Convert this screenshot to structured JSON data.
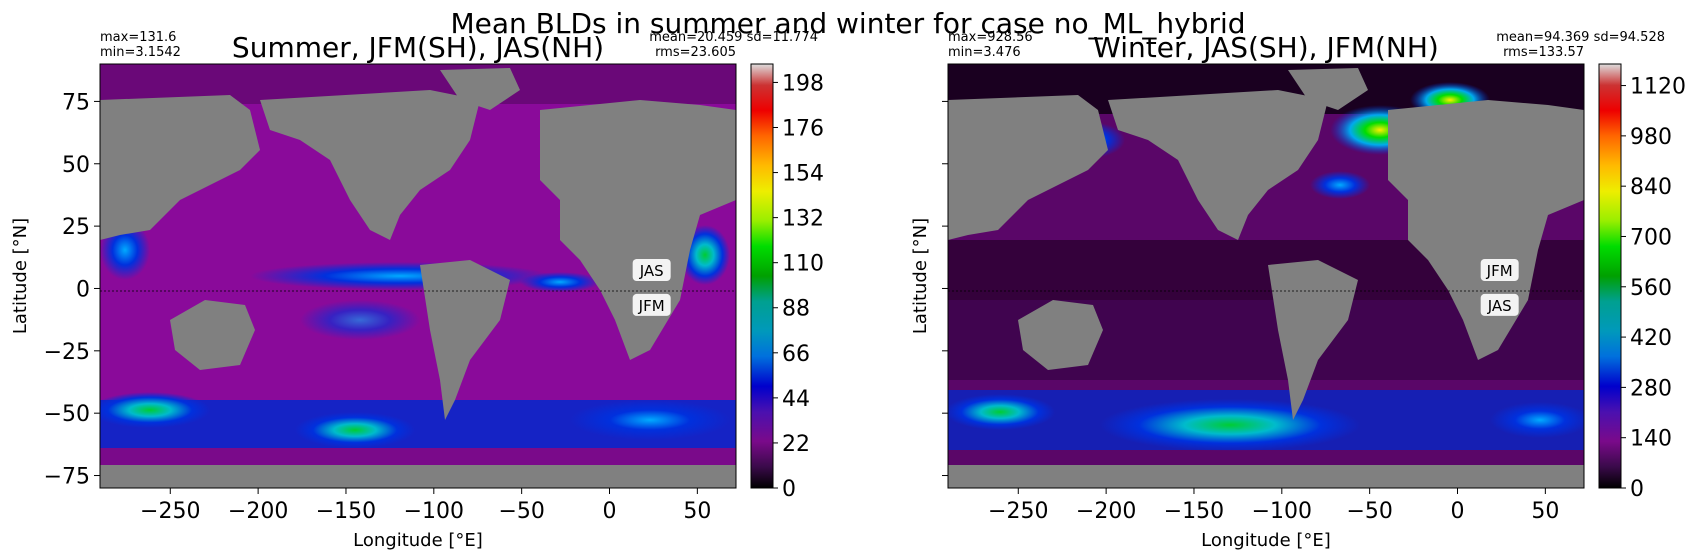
{
  "chart_data": {
    "suptitle": "Mean BLDs in summer and winter for case no_ML_hybrid",
    "panels": [
      {
        "type": "heatmap",
        "title": "Summer, JFM(SH), JAS(NH)",
        "stats_left": [
          "max=131.6",
          "min=3.1542"
        ],
        "stats_right": [
          "mean=20.459  sd=11.774",
          "rms=23.605"
        ],
        "xlabel": "Longitude [°E]",
        "ylabel": "Latitude [°N]",
        "xlim": [
          -290,
          72
        ],
        "ylim": [
          -80,
          90
        ],
        "xticks": [
          -250,
          -200,
          -150,
          -100,
          -50,
          0,
          50
        ],
        "yticks": [
          75,
          50,
          25,
          0,
          -25,
          -50,
          -75
        ],
        "colorbar_ticks": [
          0,
          22,
          44,
          66,
          88,
          110,
          132,
          154,
          176,
          198
        ],
        "colorbar_max": 207,
        "labels": [
          {
            "text": "JAS",
            "lon": 24,
            "lat": 7
          },
          {
            "text": "JFM",
            "lon": 24,
            "lat": -7
          }
        ]
      },
      {
        "type": "heatmap",
        "title": "Winter, JAS(SH), JFM(NH)",
        "stats_left": [
          "max=928.56",
          "min=3.476"
        ],
        "stats_right": [
          "mean=94.369  sd=94.528",
          "rms=133.57"
        ],
        "xlabel": "Longitude [°E]",
        "ylabel": "Latitude [°N]",
        "xlim": [
          -290,
          72
        ],
        "ylim": [
          -80,
          90
        ],
        "xticks": [
          -250,
          -200,
          -150,
          -100,
          -50,
          0,
          50
        ],
        "yticks": [
          75,
          50,
          25,
          0,
          -25,
          -50,
          -75
        ],
        "colorbar_ticks": [
          0,
          140,
          280,
          420,
          560,
          700,
          840,
          980,
          1120
        ],
        "colorbar_max": 1180,
        "labels": [
          {
            "text": "JFM",
            "lon": 24,
            "lat": 7
          },
          {
            "text": "JAS",
            "lon": 24,
            "lat": -7
          }
        ]
      }
    ]
  },
  "colors": {
    "land": "#808080",
    "ocean_summer": "#8a0a9a",
    "ocean_winter_deep": "#3a0240",
    "ocean_winter": "#6a0878"
  }
}
